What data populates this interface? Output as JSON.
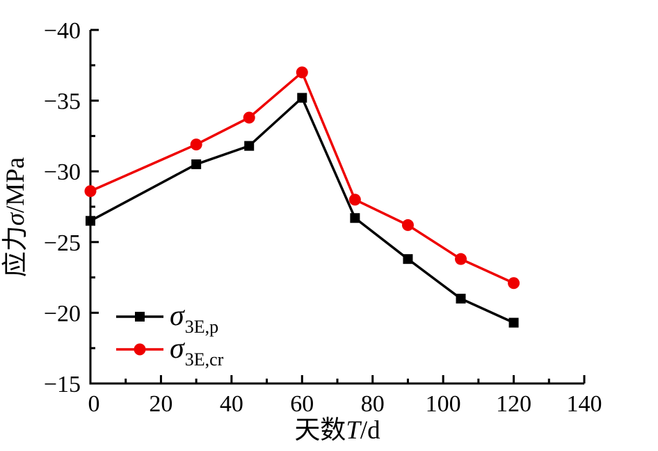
{
  "chart_data": {
    "type": "line",
    "title": "",
    "background_color": "#ffffff",
    "grid": false,
    "x": [
      0,
      30,
      45,
      60,
      75,
      90,
      105,
      120
    ],
    "series": [
      {
        "name": "σ3E,p",
        "label_main": "σ",
        "label_sub": "3E,p",
        "color": "#000000",
        "marker": "square",
        "values": [
          -26.5,
          -30.5,
          -31.8,
          -35.2,
          -26.7,
          -23.8,
          -21.0,
          -19.3
        ]
      },
      {
        "name": "σ3E,cr",
        "label_main": "σ",
        "label_sub": "3E,cr",
        "color": "#ee0000",
        "marker": "circle",
        "values": [
          -28.6,
          -31.9,
          -33.8,
          -37.0,
          -28.0,
          -26.2,
          -23.8,
          -22.1
        ]
      }
    ],
    "x_axis": {
      "min": 0,
      "max": 140,
      "title_parts": [
        {
          "text": "天数",
          "italic": false
        },
        {
          "text": "T",
          "italic": true
        },
        {
          "text": "/d",
          "italic": false
        }
      ],
      "major_ticks": [
        {
          "value": 0,
          "label": "0"
        },
        {
          "value": 20,
          "label": "20"
        },
        {
          "value": 40,
          "label": "40"
        },
        {
          "value": 60,
          "label": "60"
        },
        {
          "value": 80,
          "label": "80"
        },
        {
          "value": 100,
          "label": "100"
        },
        {
          "value": 120,
          "label": "120"
        },
        {
          "value": 140,
          "label": "140"
        }
      ],
      "minor_ticks": [
        10,
        30,
        50,
        70,
        90,
        110,
        130
      ]
    },
    "y_axis": {
      "min": -40,
      "max": -15,
      "inverted": true,
      "title_parts": [
        {
          "text": "应力",
          "italic": false
        },
        {
          "text": "σ",
          "italic": true
        },
        {
          "text": "/MPa",
          "italic": false
        }
      ],
      "major_ticks": [
        {
          "value": -40,
          "label": "−40"
        },
        {
          "value": -35,
          "label": "−35"
        },
        {
          "value": -30,
          "label": "−30"
        },
        {
          "value": -25,
          "label": "−25"
        },
        {
          "value": -20,
          "label": "−20"
        },
        {
          "value": -15,
          "label": "−15"
        }
      ],
      "minor_ticks": [
        -37.5,
        -32.5,
        -27.5,
        -22.5,
        -17.5
      ]
    },
    "legend": {
      "position": "lower-left",
      "entries": [
        {
          "label_main": "σ",
          "label_sub": "3E,p",
          "color": "#000000",
          "marker": "square"
        },
        {
          "label_main": "σ",
          "label_sub": "3E,cr",
          "color": "#ee0000",
          "marker": "circle"
        }
      ]
    }
  }
}
